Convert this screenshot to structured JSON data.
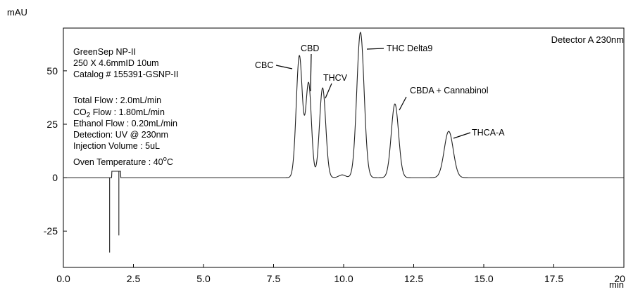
{
  "chart_data": {
    "type": "line",
    "title": "",
    "y_unit": "mAU",
    "x_unit": "min",
    "xlim": [
      0,
      20
    ],
    "ylim": [
      -42,
      70
    ],
    "x_ticks": [
      0,
      2.5,
      5,
      7.5,
      10,
      12.5,
      15,
      17.5,
      20
    ],
    "x_tick_labels": [
      "0.0",
      "2.5",
      "5.0",
      "7.5",
      "10.0",
      "12.5",
      "15.0",
      "17.5",
      "20.0"
    ],
    "y_ticks": [
      -25,
      0,
      25,
      50
    ],
    "y_tick_labels": [
      "-25",
      "0",
      "25",
      "50"
    ],
    "grid": false,
    "detector_label": "Detector A 230nm",
    "column_info": [
      "GreenSep NP-II",
      "250 X 4.6mmID 10um",
      "Catalog # 155391-GSNP-II"
    ],
    "method_info": [
      {
        "text": "Total Flow : 2.0mL/min",
        "sub": ""
      },
      {
        "pre": "CO",
        "sub": "2",
        "post": " Flow : 1.80mL/min"
      },
      {
        "text": "Ethanol Flow : 0.20mL/min"
      },
      {
        "text": "Detection: UV @ 230nm"
      },
      {
        "text": "Injection Volume : 5uL"
      }
    ],
    "oven_temperature": {
      "pre": "Oven Temperature : 40",
      "sup": "o",
      "post": "C"
    },
    "injection_disturbance": [
      {
        "x": 1.65,
        "y": -35
      },
      {
        "x": 1.98,
        "y": -27
      }
    ],
    "peaks": [
      {
        "name": "CBC",
        "rt": 8.42,
        "height": 57,
        "width": 0.11
      },
      {
        "name": "CBD",
        "rt": 8.75,
        "height": 44,
        "width": 0.1
      },
      {
        "name": "THCV",
        "rt": 9.25,
        "height": 42,
        "width": 0.11
      },
      {
        "name": "",
        "rt": 9.95,
        "height": 1.3,
        "width": 0.12
      },
      {
        "name": "THC Delta9",
        "rt": 10.6,
        "height": 68,
        "width": 0.13
      },
      {
        "name": "CBDA + Cannabinol",
        "rt": 11.83,
        "height": 34.5,
        "width": 0.13
      },
      {
        "name": "THCA-A",
        "rt": 13.75,
        "height": 21.7,
        "width": 0.16
      }
    ]
  }
}
